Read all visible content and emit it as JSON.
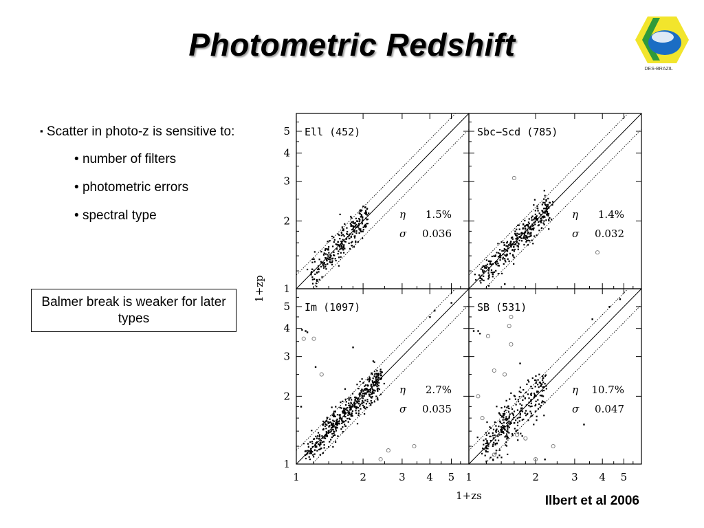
{
  "title": "Photometric Redshift",
  "logo": {
    "text": "DES-BRAZIL",
    "colors": {
      "yellow": "#f2e52c",
      "green": "#2f9a3a",
      "blue": "#1b6dc4"
    }
  },
  "bullets": {
    "main": "Scatter in photo-z is sensitive to:",
    "main_marker": "▪",
    "sub": [
      "number of filters",
      "photometric errors",
      "spectral type"
    ],
    "sub_marker": "•"
  },
  "callout": "Balmer break is weaker for later types",
  "citation": "Ilbert et al 2006",
  "chart_data": {
    "type": "scatter",
    "layout": "2x2 panels",
    "xlabel": "1+zs",
    "ylabel": "1+zp",
    "scale": "log",
    "xlim": [
      1,
      6
    ],
    "ylim": [
      1,
      6
    ],
    "x_ticks": [
      "1",
      "2",
      "3",
      "4",
      "5"
    ],
    "y_ticks": [
      "1",
      "2",
      "3",
      "4",
      "5"
    ],
    "reference_lines": [
      "1:1 solid",
      "outlier bounds dotted"
    ],
    "panels": [
      {
        "label": "Ell (452)",
        "eta_symbol": "η",
        "eta": "1.5%",
        "sigma_symbol": "σ",
        "sigma": "0.036",
        "trend": [
          1.15,
          2.1
        ],
        "spread": 0.035,
        "n_points": 260,
        "outliers": []
      },
      {
        "label": "Sbc−Scd (785)",
        "eta_symbol": "η",
        "eta": "1.4%",
        "sigma_symbol": "σ",
        "sigma": "0.032",
        "trend": [
          1.1,
          2.3
        ],
        "spread": 0.032,
        "n_points": 340,
        "outliers": [
          [
            1.6,
            3.1,
            "o"
          ],
          [
            3.8,
            1.45,
            "o"
          ],
          [
            1.45,
            1.05,
            "."
          ]
        ]
      },
      {
        "label": "Im (1097)",
        "eta_symbol": "η",
        "eta": "2.7%",
        "sigma_symbol": "σ",
        "sigma": "0.035",
        "trend": [
          1.1,
          2.4
        ],
        "spread": 0.034,
        "n_points": 460,
        "outliers": [
          [
            1.08,
            3.6,
            "o"
          ],
          [
            1.2,
            3.6,
            "o"
          ],
          [
            1.3,
            2.5,
            "o"
          ],
          [
            2.6,
            1.15,
            "o"
          ],
          [
            3.4,
            1.2,
            "o"
          ],
          [
            2.4,
            1.05,
            "o"
          ],
          [
            4.2,
            4.8,
            "."
          ],
          [
            4.0,
            4.5,
            "."
          ],
          [
            1.05,
            1.8,
            "."
          ],
          [
            1.22,
            2.7,
            "."
          ],
          [
            1.1,
            3.9,
            "."
          ],
          [
            1.12,
            3.85,
            "."
          ],
          [
            1.06,
            3.95,
            "."
          ],
          [
            1.8,
            3.3,
            "."
          ],
          [
            5.0,
            5.2,
            "."
          ]
        ]
      },
      {
        "label": "SB (531)",
        "eta_symbol": "η",
        "eta": "10.7%",
        "sigma_symbol": "σ",
        "sigma": "0.047",
        "trend": [
          1.15,
          2.2
        ],
        "spread": 0.05,
        "n_points": 300,
        "outliers": [
          [
            1.55,
            4.5,
            "o"
          ],
          [
            1.52,
            4.1,
            "o"
          ],
          [
            1.22,
            3.7,
            "o"
          ],
          [
            1.55,
            3.4,
            "o"
          ],
          [
            1.3,
            2.6,
            "o"
          ],
          [
            1.45,
            2.5,
            "o"
          ],
          [
            1.1,
            2.0,
            "o"
          ],
          [
            1.15,
            1.6,
            "o"
          ],
          [
            1.65,
            1.35,
            "o"
          ],
          [
            1.8,
            1.3,
            "o"
          ],
          [
            1.3,
            1.1,
            "o"
          ],
          [
            2.0,
            1.05,
            "o"
          ],
          [
            2.4,
            1.2,
            "o"
          ],
          [
            1.05,
            3.9,
            "."
          ],
          [
            1.1,
            3.9,
            "."
          ],
          [
            1.12,
            3.8,
            "."
          ],
          [
            1.7,
            2.8,
            "."
          ],
          [
            3.3,
            1.5,
            "."
          ],
          [
            2.2,
            1.05,
            "."
          ],
          [
            3.6,
            4.4,
            "."
          ],
          [
            4.3,
            5.0,
            "."
          ],
          [
            4.8,
            5.4,
            "."
          ]
        ]
      }
    ]
  }
}
